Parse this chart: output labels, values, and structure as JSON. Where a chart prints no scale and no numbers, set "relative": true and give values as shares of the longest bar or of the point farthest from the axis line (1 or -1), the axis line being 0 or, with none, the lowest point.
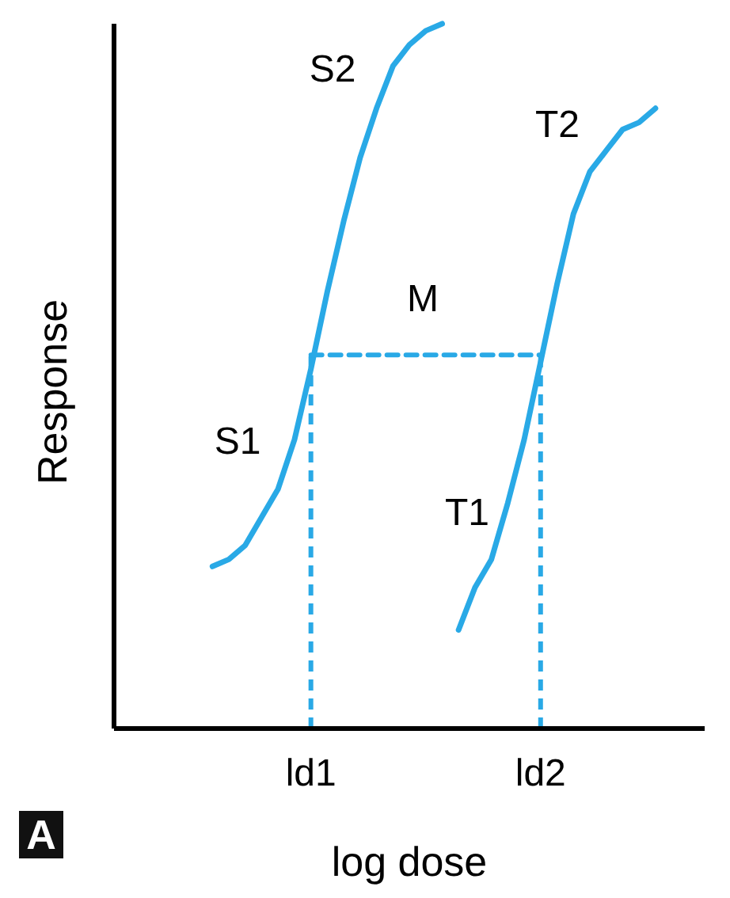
{
  "chart_data": {
    "type": "line",
    "relative": true,
    "xlabel": "log dose",
    "ylabel": "Response",
    "categories": [
      null,
      null,
      null,
      null,
      null,
      null,
      null,
      null,
      null,
      null,
      null,
      null,
      "ld1",
      null,
      null,
      null,
      null,
      null,
      null,
      null,
      null,
      null,
      null,
      null,
      null,
      null,
      "ld2",
      null,
      null,
      null,
      null,
      null,
      null,
      null,
      null,
      null,
      null
    ],
    "series": [
      {
        "color": "#29a9e6",
        "values": [
          null,
          null,
          null,
          null,
          null,
          null,
          0.23,
          0.24,
          0.26,
          0.3,
          0.34,
          0.41,
          0.51,
          0.62,
          0.72,
          0.81,
          0.88,
          0.94,
          0.97,
          0.99,
          1,
          null,
          null,
          null,
          null,
          null,
          null,
          null,
          null,
          null,
          null,
          null,
          null,
          null,
          null,
          null,
          null
        ]
      },
      {
        "color": "#29a9e6",
        "values": [
          null,
          null,
          null,
          null,
          null,
          null,
          null,
          null,
          null,
          null,
          null,
          null,
          null,
          null,
          null,
          null,
          null,
          null,
          null,
          null,
          null,
          0.14,
          0.2,
          0.24,
          0.32,
          0.41,
          0.52,
          0.63,
          0.73,
          0.79,
          0.82,
          0.85,
          0.86,
          0.88,
          null,
          null,
          null
        ]
      },
      {
        "color": "#29a9e6",
        "line_style": "dashed",
        "values": [
          null,
          null,
          null,
          null,
          null,
          null,
          null,
          null,
          null,
          null,
          null,
          null,
          0.53,
          0.53,
          0.53,
          0.53,
          0.53,
          0.53,
          0.53,
          0.53,
          0.53,
          0.53,
          0.53,
          0.53,
          0.53,
          0.53,
          0.53,
          null,
          null,
          null,
          null,
          null,
          null,
          null,
          null,
          null,
          null
        ]
      }
    ],
    "ref_lines": [
      {
        "axis": "x",
        "value": "ld1",
        "color": "#29a9e6",
        "line_style": "dashed"
      },
      {
        "axis": "x",
        "value": "ld2",
        "color": "#29a9e6",
        "line_style": "dashed"
      }
    ],
    "annotations": [
      "S2",
      "T2",
      "M",
      "S1",
      "T1",
      "A"
    ]
  }
}
